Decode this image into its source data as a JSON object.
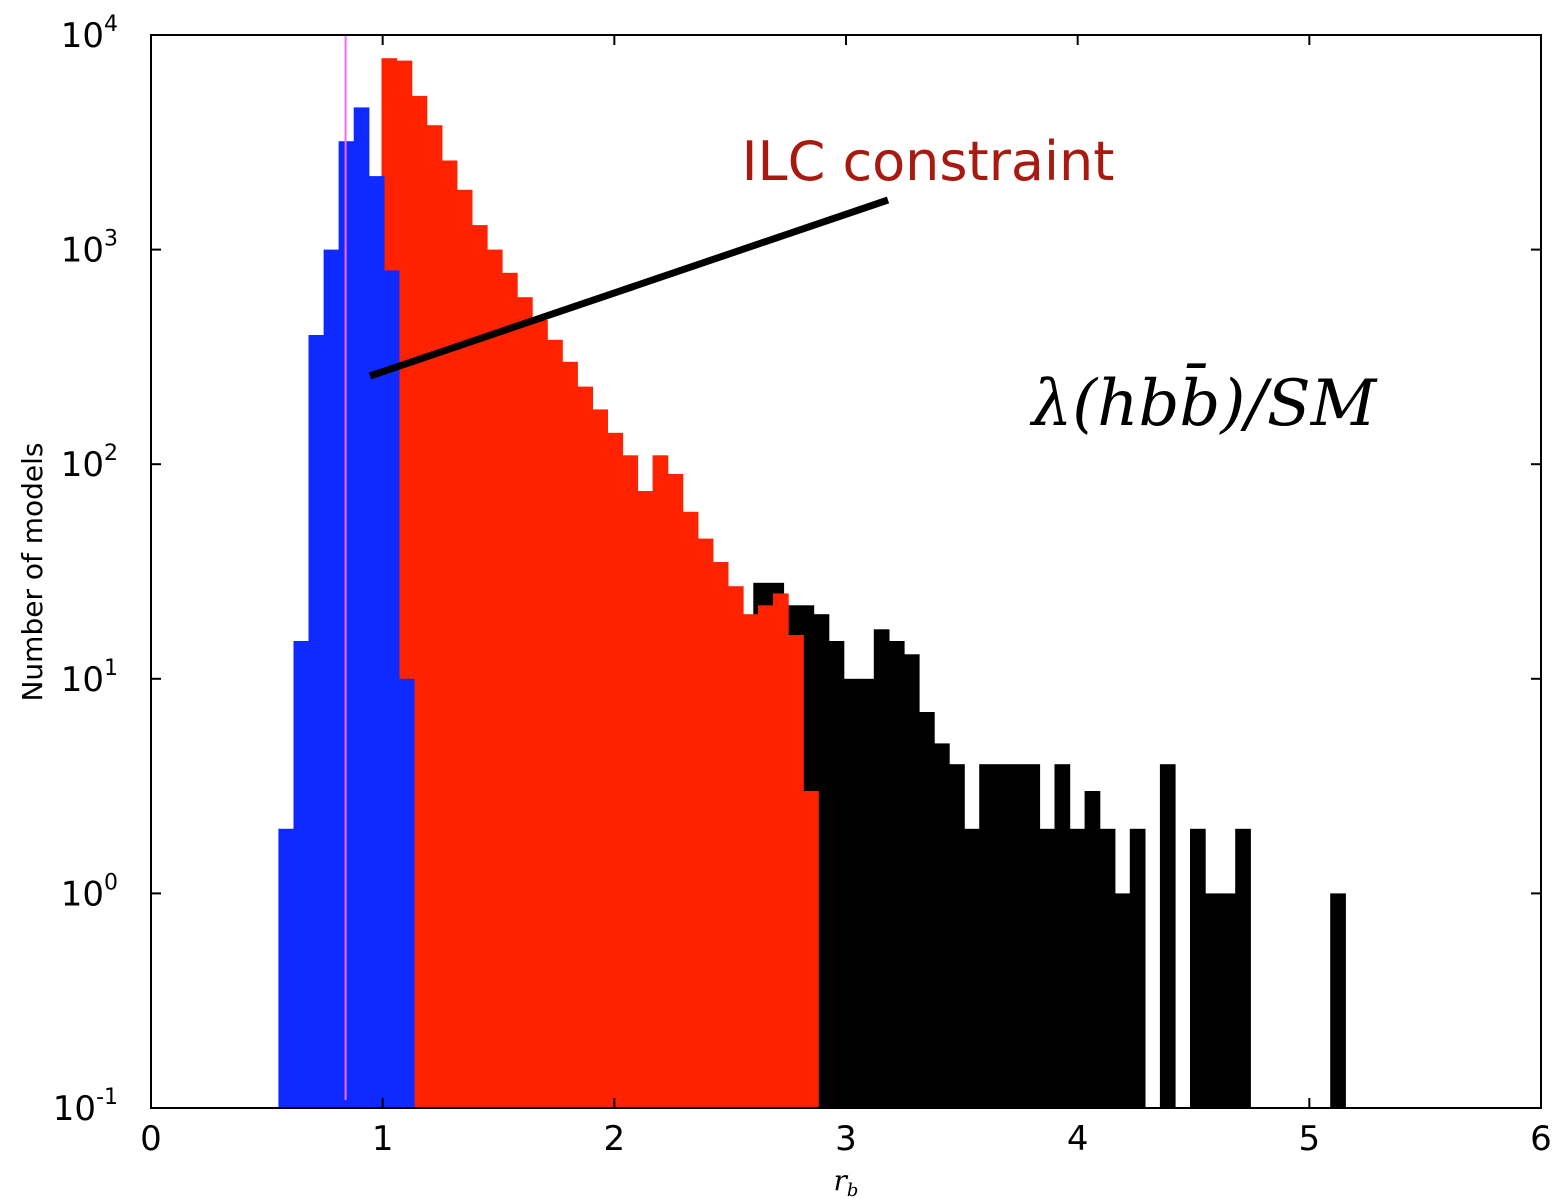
{
  "chart_data": {
    "type": "bar",
    "title": "",
    "xlabel": "r_b",
    "ylabel": "Number of models",
    "xlim": [
      0,
      6
    ],
    "ylim": [
      0.1,
      10000
    ],
    "yscale": "log",
    "xticks": [
      "0",
      "1",
      "2",
      "3",
      "4",
      "5",
      "6"
    ],
    "yticks": [
      {
        "base": "10",
        "exp": "-1",
        "value": 0.1
      },
      {
        "base": "10",
        "exp": "0",
        "value": 1
      },
      {
        "base": "10",
        "exp": "1",
        "value": 10
      },
      {
        "base": "10",
        "exp": "2",
        "value": 100
      },
      {
        "base": "10",
        "exp": "3",
        "value": 1000
      },
      {
        "base": "10",
        "exp": "4",
        "value": 10000
      }
    ],
    "bin_width": 0.065,
    "series": [
      {
        "color": "#000000",
        "bins": [
          [
            2.6,
            28
          ],
          [
            2.665,
            28
          ],
          [
            2.73,
            22
          ],
          [
            2.795,
            22
          ],
          [
            2.86,
            20
          ],
          [
            2.925,
            15
          ],
          [
            2.99,
            10
          ],
          [
            3.055,
            10
          ],
          [
            3.12,
            17
          ],
          [
            3.185,
            15
          ],
          [
            3.25,
            13
          ],
          [
            3.315,
            7
          ],
          [
            3.38,
            5
          ],
          [
            3.445,
            4
          ],
          [
            3.51,
            2
          ],
          [
            3.575,
            4
          ],
          [
            3.64,
            4
          ],
          [
            3.705,
            4
          ],
          [
            3.77,
            4
          ],
          [
            3.835,
            2
          ],
          [
            3.9,
            4
          ],
          [
            3.965,
            2
          ],
          [
            4.03,
            3
          ],
          [
            4.095,
            2
          ],
          [
            4.16,
            1
          ],
          [
            4.225,
            2
          ],
          [
            4.29,
            0
          ],
          [
            4.355,
            4
          ],
          [
            4.42,
            0
          ],
          [
            4.485,
            2
          ],
          [
            4.55,
            1
          ],
          [
            4.615,
            1
          ],
          [
            4.68,
            2
          ],
          [
            5.0,
            0
          ],
          [
            5.09,
            1
          ]
        ]
      },
      {
        "color": "#ff2200",
        "bins": [
          [
            0.995,
            7800
          ],
          [
            1.06,
            7600
          ],
          [
            1.125,
            5200
          ],
          [
            1.19,
            3800
          ],
          [
            1.255,
            2600
          ],
          [
            1.32,
            1900
          ],
          [
            1.385,
            1300
          ],
          [
            1.45,
            1000
          ],
          [
            1.515,
            780
          ],
          [
            1.58,
            600
          ],
          [
            1.645,
            470
          ],
          [
            1.71,
            380
          ],
          [
            1.775,
            300
          ],
          [
            1.84,
            230
          ],
          [
            1.905,
            180
          ],
          [
            1.97,
            140
          ],
          [
            2.035,
            110
          ],
          [
            2.1,
            75
          ],
          [
            2.165,
            110
          ],
          [
            2.23,
            90
          ],
          [
            2.295,
            60
          ],
          [
            2.36,
            45
          ],
          [
            2.425,
            35
          ],
          [
            2.49,
            27
          ],
          [
            2.555,
            20
          ],
          [
            2.62,
            22
          ],
          [
            2.685,
            25
          ],
          [
            2.75,
            16
          ],
          [
            2.815,
            3
          ]
        ]
      },
      {
        "color": "#0f2aff",
        "bins": [
          [
            0.55,
            2
          ],
          [
            0.615,
            15
          ],
          [
            0.68,
            400
          ],
          [
            0.745,
            1000
          ],
          [
            0.81,
            3200
          ],
          [
            0.875,
            4600
          ],
          [
            0.94,
            2200
          ],
          [
            1.005,
            800
          ],
          [
            1.07,
            10
          ]
        ]
      }
    ],
    "reference_line": {
      "x": 0.84,
      "color": "#ff66ff"
    },
    "annotations": [
      {
        "text": "ILC constraint",
        "color": "#a81a10"
      },
      {
        "text": "λ(hbb̄)/SM",
        "color": "#000000"
      }
    ]
  }
}
